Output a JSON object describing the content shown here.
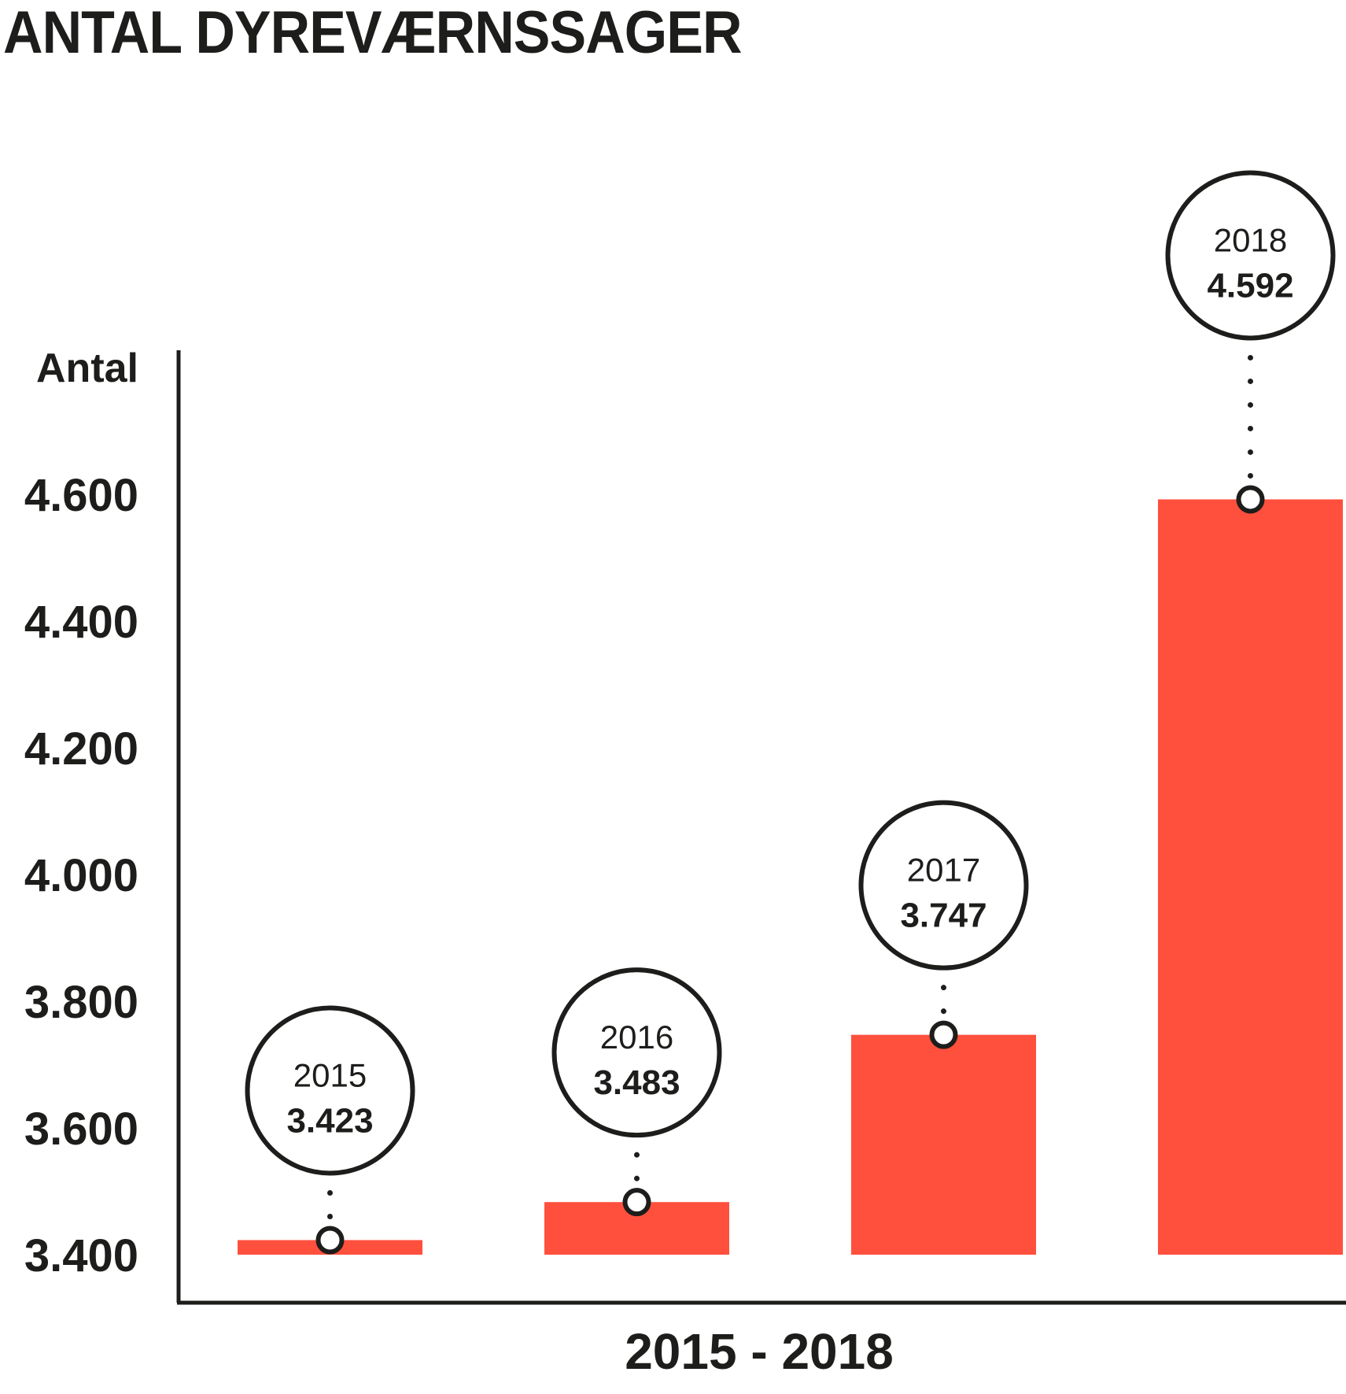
{
  "chart_data": {
    "type": "bar",
    "title": "ANTAL DYREVÆRNSSAGER",
    "ylabel": "Antal",
    "xlabel": "2015 - 2018",
    "categories": [
      "2015",
      "2016",
      "2017",
      "2018"
    ],
    "values": [
      3423,
      3483,
      3747,
      4592
    ],
    "value_labels": [
      "3.423",
      "3.483",
      "3.747",
      "4.592"
    ],
    "ylim": [
      3400,
      4600
    ],
    "yticks": [
      3400,
      3600,
      3800,
      4000,
      4200,
      4400,
      4600
    ],
    "ytick_labels": [
      "3.400",
      "3.600",
      "3.800",
      "4.000",
      "4.200",
      "4.400",
      "4.600"
    ],
    "grid": false,
    "colors": {
      "bar": "#ff4f3d",
      "ink": "#1d1d1b"
    }
  }
}
